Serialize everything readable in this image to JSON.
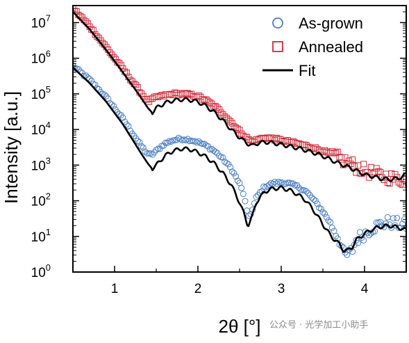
{
  "chart_data": {
    "type": "scatter",
    "xlabel": "2θ [°]",
    "ylabel": "Intensity [a.u.]",
    "xlim": [
      0.5,
      4.5
    ],
    "ylim": [
      1,
      30000000
    ],
    "yscale": "log",
    "x_ticks": [
      {
        "value": 1,
        "label": "1"
      },
      {
        "value": 2,
        "label": "2"
      },
      {
        "value": 3,
        "label": "3"
      },
      {
        "value": 4,
        "label": "4"
      }
    ],
    "y_ticks": [
      {
        "value": 1,
        "base": "10",
        "exp": "0"
      },
      {
        "value": 10,
        "base": "10",
        "exp": "1"
      },
      {
        "value": 100,
        "base": "10",
        "exp": "2"
      },
      {
        "value": 1000,
        "base": "10",
        "exp": "3"
      },
      {
        "value": 10000,
        "base": "10",
        "exp": "4"
      },
      {
        "value": 100000,
        "base": "10",
        "exp": "5"
      },
      {
        "value": 1000000,
        "base": "10",
        "exp": "6"
      },
      {
        "value": 10000000,
        "base": "10",
        "exp": "7"
      }
    ],
    "legend_position": "top-right",
    "colors": {
      "as_grown": "#4a7ec2",
      "annealed": "#cc2a36",
      "fit": "#000000"
    },
    "series": [
      {
        "name": "As-grown",
        "marker": "circle",
        "x": [
          0.5,
          0.7,
          0.9,
          1.1,
          1.3,
          1.4,
          1.45,
          1.5,
          1.6,
          1.7,
          1.8,
          1.9,
          2.0,
          2.1,
          2.2,
          2.3,
          2.4,
          2.5,
          2.55,
          2.6,
          2.65,
          2.7,
          2.8,
          2.9,
          3.0,
          3.1,
          3.2,
          3.3,
          3.4,
          3.5,
          3.6,
          3.7,
          3.75,
          3.8,
          3.85,
          3.9,
          4.0,
          4.1,
          4.2,
          4.3,
          4.4,
          4.5
        ],
        "y": [
          600000,
          250000,
          80000,
          20000,
          4000,
          2000,
          2000,
          2500,
          4000,
          5000,
          5500,
          5200,
          4500,
          3500,
          2500,
          1500,
          800,
          300,
          150,
          35,
          50,
          120,
          250,
          310,
          330,
          300,
          250,
          180,
          100,
          50,
          22,
          8,
          3,
          3,
          4,
          8,
          12,
          18,
          22,
          25,
          22,
          20
        ]
      },
      {
        "name": "Annealed",
        "marker": "square",
        "x": [
          0.5,
          0.7,
          0.9,
          1.1,
          1.3,
          1.4,
          1.45,
          1.5,
          1.6,
          1.7,
          1.8,
          1.9,
          2.0,
          2.1,
          2.2,
          2.3,
          2.4,
          2.5,
          2.6,
          2.65,
          2.7,
          2.8,
          2.9,
          3.0,
          3.1,
          3.2,
          3.3,
          3.4,
          3.5,
          3.6,
          3.7,
          3.8,
          3.9,
          4.0,
          4.1,
          4.2,
          4.3,
          4.4,
          4.5
        ],
        "y": [
          25000000,
          8000000,
          2000000,
          500000,
          120000,
          60000,
          70000,
          80000,
          90000,
          100000,
          100000,
          95000,
          85000,
          65000,
          45000,
          28000,
          16000,
          9000,
          5500,
          4500,
          5000,
          6000,
          5500,
          5000,
          4500,
          4000,
          3500,
          3000,
          2500,
          2000,
          1500,
          1200,
          900,
          700,
          600,
          500,
          450,
          400,
          380
        ]
      },
      {
        "name": "Fit",
        "marker": "line",
        "x": [
          0.5,
          0.7,
          0.9,
          1.1,
          1.3,
          1.4,
          1.45,
          1.5,
          1.6,
          1.7,
          1.8,
          1.9,
          2.0,
          2.1,
          2.2,
          2.3,
          2.4,
          2.5,
          2.55,
          2.6,
          2.65,
          2.7,
          2.8,
          2.9,
          3.0,
          3.1,
          3.2,
          3.3,
          3.4,
          3.5,
          3.6,
          3.7,
          3.75,
          3.8,
          3.85,
          3.9,
          4.0,
          4.1,
          4.2,
          4.3,
          4.4,
          4.5
        ],
        "y": [
          550000,
          200000,
          60000,
          14000,
          2500,
          1100,
          800,
          1000,
          1800,
          2500,
          2900,
          2800,
          2300,
          1700,
          1100,
          600,
          280,
          90,
          45,
          20,
          35,
          90,
          180,
          220,
          230,
          200,
          150,
          100,
          50,
          22,
          10,
          6,
          4,
          4,
          5,
          8,
          12,
          16,
          19,
          20,
          18,
          15
        ]
      },
      {
        "name": "Fit",
        "marker": "line",
        "x": [
          0.5,
          0.7,
          0.9,
          1.1,
          1.3,
          1.4,
          1.45,
          1.5,
          1.6,
          1.7,
          1.8,
          1.9,
          2.0,
          2.1,
          2.2,
          2.3,
          2.4,
          2.5,
          2.6,
          2.65,
          2.7,
          2.8,
          2.9,
          3.0,
          3.1,
          3.2,
          3.3,
          3.4,
          3.5,
          3.6,
          3.7,
          3.8,
          3.9,
          4.0,
          4.1,
          4.2,
          4.3,
          4.4,
          4.5
        ],
        "y": [
          20000000,
          6500000,
          1700000,
          400000,
          90000,
          40000,
          30000,
          40000,
          55000,
          65000,
          70000,
          68000,
          60000,
          45000,
          30000,
          18000,
          10000,
          6000,
          4000,
          3500,
          4000,
          4500,
          4200,
          3800,
          3400,
          3000,
          2600,
          2200,
          1800,
          1400,
          1100,
          900,
          700,
          550,
          480,
          420,
          400,
          420,
          550
        ]
      }
    ],
    "legend": [
      {
        "label": "As-grown",
        "marker": "circle"
      },
      {
        "label": "Annealed",
        "marker": "square"
      },
      {
        "label": "Fit",
        "marker": "line"
      }
    ]
  },
  "watermark": "公众号 · 光学加工小助手"
}
